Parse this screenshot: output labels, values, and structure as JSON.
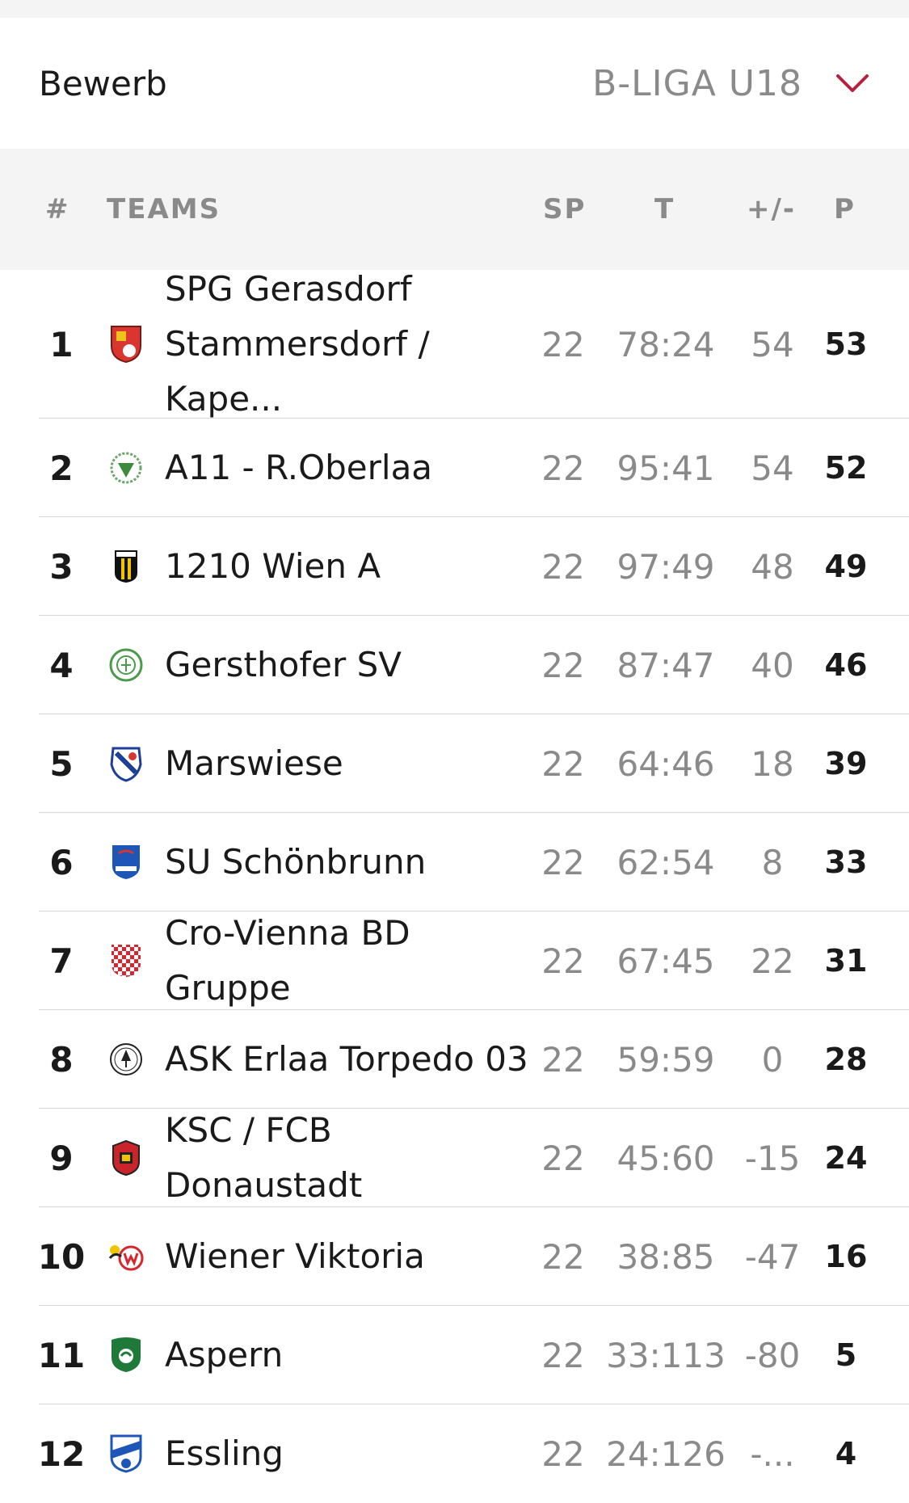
{
  "selector": {
    "label": "Bewerb",
    "value": "B-LIGA U18",
    "icon": "chevron-down-icon",
    "accent": "#b5213f"
  },
  "table": {
    "headers": {
      "pos": "#",
      "team": "TEAMS",
      "sp": "SP",
      "t": "T",
      "diff": "+/-",
      "pts": "P"
    },
    "rows": [
      {
        "pos": "1",
        "team_line1": "SPG Gerasdorf",
        "team_line2": "Stammersdorf / Kape...",
        "sp": "22",
        "t": "78:24",
        "diff": "54",
        "pts": "53",
        "logo": "shield-red-icon"
      },
      {
        "pos": "2",
        "team": "A11 - R.Oberlaa",
        "sp": "22",
        "t": "95:41",
        "diff": "54",
        "pts": "52",
        "logo": "crest-green-circle-icon"
      },
      {
        "pos": "3",
        "team": "1210 Wien A",
        "sp": "22",
        "t": "97:49",
        "diff": "48",
        "pts": "49",
        "logo": "shield-yellow-black-icon"
      },
      {
        "pos": "4",
        "team": "Gersthofer SV",
        "sp": "22",
        "t": "87:47",
        "diff": "40",
        "pts": "46",
        "logo": "crest-green-ring-icon"
      },
      {
        "pos": "5",
        "team": "Marswiese",
        "sp": "22",
        "t": "64:46",
        "diff": "18",
        "pts": "39",
        "logo": "crest-blue-white-icon"
      },
      {
        "pos": "6",
        "team": "SU Schönbrunn",
        "sp": "22",
        "t": "62:54",
        "diff": "8",
        "pts": "33",
        "logo": "shield-blue-icon"
      },
      {
        "pos": "7",
        "team": "Cro-Vienna BD Gruppe",
        "sp": "22",
        "t": "67:45",
        "diff": "22",
        "pts": "31",
        "logo": "checkered-red-icon"
      },
      {
        "pos": "8",
        "team": "ASK Erlaa Torpedo 03",
        "sp": "22",
        "t": "59:59",
        "diff": "0",
        "pts": "28",
        "logo": "tree-circle-icon"
      },
      {
        "pos": "9",
        "team": "KSC / FCB Donaustadt",
        "sp": "22",
        "t": "45:60",
        "diff": "-15",
        "pts": "24",
        "logo": "shield-red-dark-icon"
      },
      {
        "pos": "10",
        "team": "Wiener Viktoria",
        "sp": "22",
        "t": "38:85",
        "diff": "-47",
        "pts": "16",
        "logo": "crest-red-w-icon"
      },
      {
        "pos": "11",
        "team": "Aspern",
        "sp": "22",
        "t": "33:113",
        "diff": "-80",
        "pts": "5",
        "logo": "shield-green-icon"
      },
      {
        "pos": "12",
        "team": "Essling",
        "sp": "22",
        "t": "24:126",
        "diff": "-...",
        "pts": "4",
        "logo": "shield-blue-white-icon"
      }
    ]
  }
}
